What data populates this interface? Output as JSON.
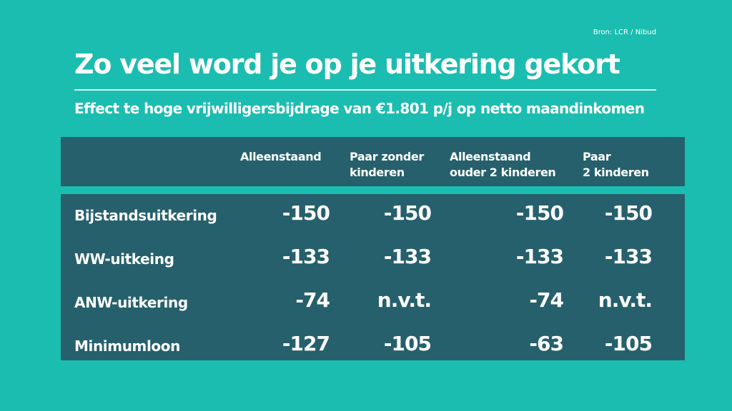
{
  "source": "Bron: LCR / Nibud",
  "title": "Zo veel word je op je uitkering gekort",
  "subtitle": "Effect te hoge vrijwilligersbijdrage van €1.801 p/j op netto maandinkomen",
  "colors": {
    "background": "#1bbdb0",
    "table": "#26606c",
    "text": "#ffffff"
  },
  "chart_data": {
    "type": "table",
    "columns": [
      {
        "line1": "Alleenstaand",
        "line2": ""
      },
      {
        "line1": "Paar zonder",
        "line2": "kinderen"
      },
      {
        "line1": "Alleenstaand",
        "line2": "ouder 2 kinderen"
      },
      {
        "line1": "Paar",
        "line2": "2 kinderen"
      }
    ],
    "rows": [
      {
        "label": "Bijstandsuitkering",
        "values": [
          "-150",
          "-150",
          "-150",
          "-150"
        ]
      },
      {
        "label": "WW-uitkeing",
        "values": [
          "-133",
          "-133",
          "-133",
          "-133"
        ]
      },
      {
        "label": "ANW-uitkering",
        "values": [
          "-74",
          "n.v.t.",
          "-74",
          "n.v.t."
        ]
      },
      {
        "label": "Minimumloon",
        "values": [
          "-127",
          "-105",
          "-63",
          "-105"
        ]
      }
    ]
  }
}
